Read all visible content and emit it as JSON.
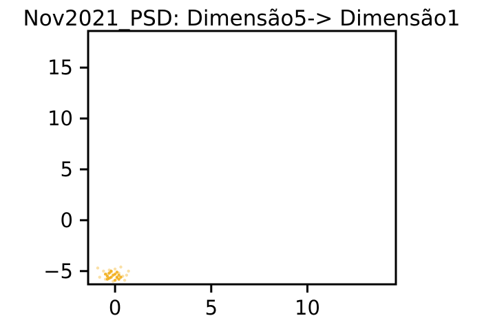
{
  "chart_data": {
    "type": "scatter",
    "title": "Nov2021_PSD: Dimensão5-> Dimensão1",
    "xlabel": "",
    "ylabel": "",
    "xlim": [
      -1.4,
      14.6
    ],
    "ylim": [
      -6.3,
      18.6
    ],
    "x_ticks": [
      0,
      5,
      10
    ],
    "x_tick_labels": [
      "0",
      "5",
      "10"
    ],
    "y_ticks": [
      -5,
      0,
      5,
      10,
      15
    ],
    "y_tick_labels": [
      "−5",
      "0",
      "5",
      "10",
      "15"
    ],
    "grid": false,
    "legend": "none",
    "series": [
      {
        "color": "#f0a500",
        "alpha": 0.35,
        "points": [
          [
            -0.9,
            -4.7
          ],
          [
            -0.6,
            -5.0
          ],
          [
            -0.4,
            -5.3
          ],
          [
            -0.2,
            -5.1
          ],
          [
            0.0,
            -4.8
          ],
          [
            0.2,
            -5.2
          ],
          [
            0.4,
            -5.5
          ],
          [
            0.6,
            -5.4
          ],
          [
            -0.8,
            -5.6
          ],
          [
            -0.5,
            -5.8
          ],
          [
            0.1,
            -5.7
          ],
          [
            0.5,
            -5.9
          ],
          [
            -0.3,
            -4.9
          ],
          [
            0.3,
            -4.6
          ],
          [
            -0.1,
            -6.0
          ],
          [
            0.7,
            -5.0
          ]
        ]
      },
      {
        "color": "#f0a500",
        "alpha": 0.8,
        "points": [
          [
            -0.5,
            -5.3
          ],
          [
            -0.4,
            -5.5
          ],
          [
            -0.3,
            -5.2
          ],
          [
            -0.2,
            -5.6
          ],
          [
            -0.1,
            -5.4
          ],
          [
            0.0,
            -5.3
          ],
          [
            0.1,
            -5.6
          ],
          [
            0.2,
            -5.4
          ],
          [
            -0.4,
            -5.8
          ],
          [
            0.0,
            -5.9
          ],
          [
            0.2,
            -5.8
          ],
          [
            -0.2,
            -5.0
          ],
          [
            0.1,
            -5.1
          ],
          [
            -0.3,
            -5.7
          ],
          [
            0.3,
            -5.6
          ]
        ]
      }
    ]
  }
}
